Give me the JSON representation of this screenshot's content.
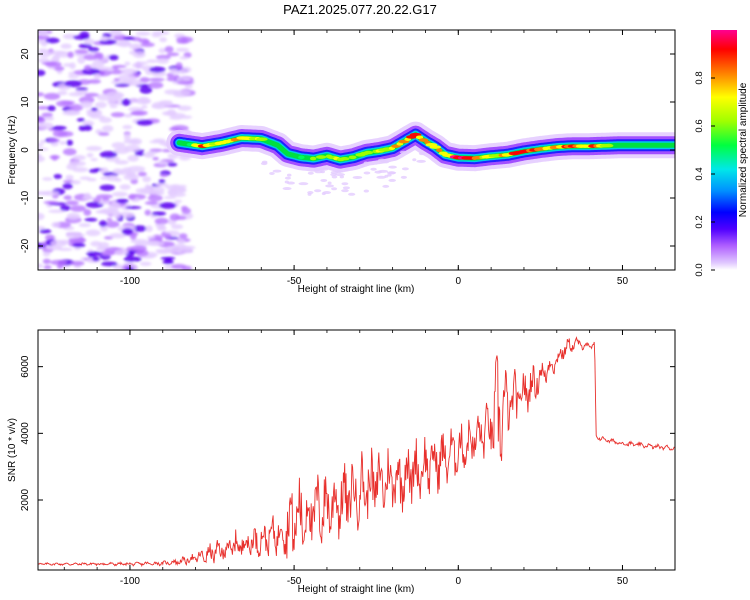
{
  "title": "PAZ1.2025.077.20.22.G17",
  "colors": {
    "snr_line": "#e8302c",
    "colormap": [
      "#ffffff",
      "#e8d0ff",
      "#c070ff",
      "#6000ff",
      "#0000ff",
      "#0090ff",
      "#00e0e0",
      "#00ff60",
      "#a0ff00",
      "#ffff00",
      "#ff8000",
      "#ff0000",
      "#ff0090"
    ]
  },
  "chart_data": [
    {
      "type": "heatmap",
      "xlabel": "Height of straight line (km)",
      "ylabel": "Frequency (Hz)",
      "xlim": [
        -128,
        66
      ],
      "ylim": [
        -25,
        25
      ],
      "xticks": [
        {
          "value": -100,
          "label": "-100"
        },
        {
          "value": -50,
          "label": "-50"
        },
        {
          "value": 0,
          "label": "0"
        },
        {
          "value": 50,
          "label": "50"
        }
      ],
      "yticks": [
        {
          "value": -20,
          "label": "-20"
        },
        {
          "value": -10,
          "label": "-10"
        },
        {
          "value": 0,
          "label": "0"
        },
        {
          "value": 10,
          "label": "10"
        },
        {
          "value": 20,
          "label": "20"
        }
      ],
      "ridge": {
        "x": [
          -85,
          -78,
          -72,
          -66,
          -60,
          -55,
          -52,
          -48,
          -44,
          -40,
          -36,
          -32,
          -28,
          -24,
          -20,
          -16,
          -13,
          -10,
          -7,
          -4,
          0,
          5,
          10,
          15,
          20,
          25,
          30,
          35,
          40,
          45,
          50,
          55,
          60,
          66
        ],
        "freq": [
          1.5,
          0.8,
          1.5,
          2.5,
          2.3,
          1.0,
          -0.8,
          -1.5,
          -1.8,
          -1.2,
          -2.0,
          -1.5,
          -0.6,
          -0.2,
          0.4,
          2.0,
          3.2,
          1.8,
          0.6,
          -1.0,
          -1.6,
          -1.7,
          -1.3,
          -1.0,
          -0.3,
          0.2,
          0.6,
          0.8,
          0.8,
          0.9,
          1.0,
          1.0,
          1.0,
          1.0
        ],
        "amplitude": [
          0.45,
          0.85,
          0.75,
          0.8,
          0.7,
          0.6,
          0.55,
          0.6,
          0.6,
          0.7,
          0.75,
          0.65,
          0.7,
          0.75,
          0.8,
          0.85,
          0.9,
          0.8,
          0.75,
          0.85,
          0.95,
          0.95,
          0.7,
          0.85,
          0.9,
          0.8,
          0.85,
          0.9,
          0.9,
          0.7,
          0.5,
          0.45,
          0.4,
          0.4
        ]
      },
      "noise_region_x": [
        -128,
        -82
      ]
    },
    {
      "type": "colorbar",
      "ylabel": "Normalized spectral amplitude",
      "ylim": [
        0,
        1
      ],
      "yticks": [
        {
          "value": 0,
          "label": "0.0"
        },
        {
          "value": 0.2,
          "label": "0.2"
        },
        {
          "value": 0.4,
          "label": "0.4"
        },
        {
          "value": 0.6,
          "label": "0.6"
        },
        {
          "value": 0.8,
          "label": "0.8"
        }
      ]
    },
    {
      "type": "line",
      "xlabel": "Height of straight line (km)",
      "ylabel": "SNR (10 * v/v)",
      "xlim": [
        -128,
        66
      ],
      "ylim": [
        -100,
        7100
      ],
      "xticks": [
        {
          "value": -100,
          "label": "-100"
        },
        {
          "value": -50,
          "label": "-50"
        },
        {
          "value": 0,
          "label": "0"
        },
        {
          "value": 50,
          "label": "50"
        }
      ],
      "yticks": [
        {
          "value": 2000,
          "label": "2000"
        },
        {
          "value": 4000,
          "label": "4000"
        },
        {
          "value": 6000,
          "label": "6000"
        }
      ],
      "envelope": {
        "x": [
          -128,
          -100,
          -90,
          -85,
          -80,
          -75,
          -70,
          -65,
          -60,
          -55,
          -50,
          -45,
          -40,
          -35,
          -30,
          -25,
          -20,
          -15,
          -10,
          -5,
          0,
          5,
          10,
          12,
          15,
          20,
          25,
          30,
          33,
          36,
          40,
          41.5,
          42,
          45,
          50,
          55,
          60,
          66
        ],
        "mean": [
          80,
          80,
          100,
          150,
          250,
          400,
          550,
          700,
          800,
          1000,
          1400,
          1600,
          1800,
          2000,
          2300,
          2500,
          2600,
          2800,
          3000,
          3200,
          3500,
          3800,
          4200,
          4500,
          4800,
          5200,
          5700,
          6200,
          6600,
          6700,
          6600,
          6650,
          3900,
          3800,
          3700,
          3650,
          3600,
          3550
        ],
        "amplitude": [
          30,
          40,
          50,
          80,
          150,
          250,
          350,
          400,
          400,
          500,
          1100,
          900,
          900,
          900,
          900,
          850,
          850,
          800,
          750,
          700,
          600,
          600,
          700,
          1600,
          800,
          600,
          400,
          250,
          200,
          150,
          100,
          80,
          60,
          60,
          60,
          60,
          60,
          60
        ]
      }
    }
  ]
}
